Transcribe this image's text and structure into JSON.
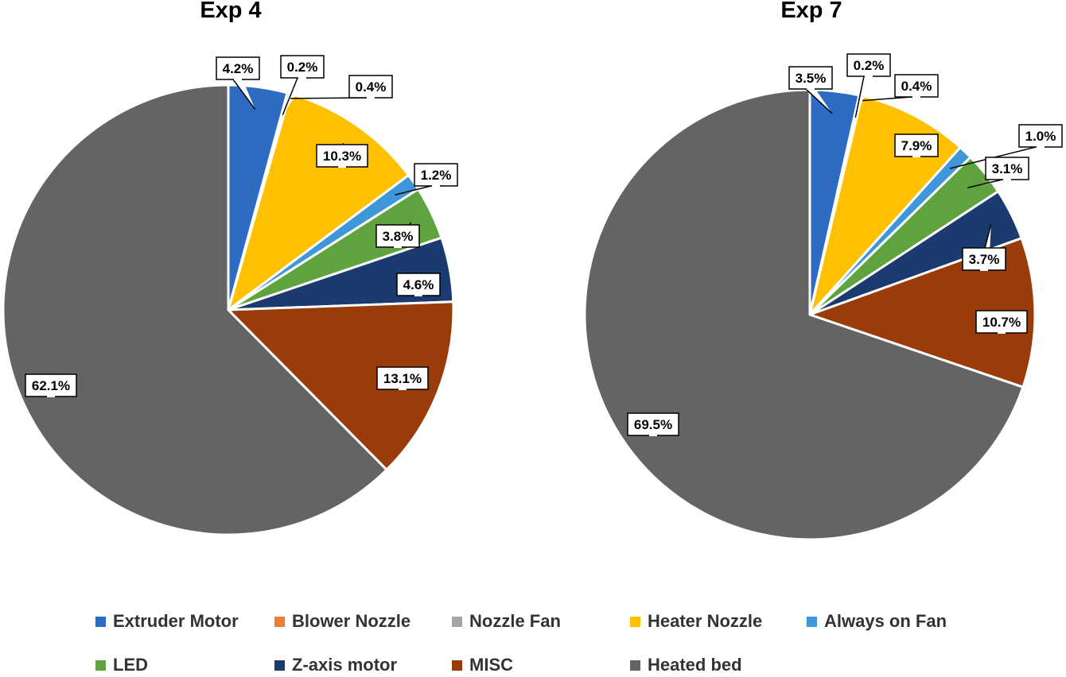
{
  "chart_data": [
    {
      "type": "pie",
      "title": "Exp 4",
      "categories": [
        "Extruder Motor",
        "Blower Nozzle",
        "Nozzle Fan",
        "Heater Nozzle",
        "Always on Fan",
        "LED",
        "Z-axis motor",
        "MISC",
        "Heated bed"
      ],
      "values": [
        4.2,
        0.0,
        0.2,
        10.3,
        1.2,
        3.8,
        4.6,
        13.1,
        62.1
      ],
      "value_labels": [
        "4.2%",
        "",
        "0.2%",
        "10.3%",
        "1.2%",
        "3.8%",
        "4.6%",
        "13.1%",
        "62.1%"
      ],
      "extra_labels": [
        {
          "text": "0.4%"
        }
      ],
      "start_angle_deg": 0,
      "direction": "clockwise"
    },
    {
      "type": "pie",
      "title": "Exp 7",
      "categories": [
        "Extruder Motor",
        "Blower Nozzle",
        "Nozzle Fan",
        "Heater Nozzle",
        "Always on Fan",
        "LED",
        "Z-axis motor",
        "MISC",
        "Heated bed"
      ],
      "values": [
        3.5,
        0.0,
        0.2,
        7.9,
        1.0,
        3.1,
        3.7,
        10.7,
        69.5
      ],
      "value_labels": [
        "3.5%",
        "",
        "0.2%",
        "7.9%",
        "1.0%",
        "3.1%",
        "3.7%",
        "10.7%",
        "69.5%"
      ],
      "extra_labels": [
        {
          "text": "0.4%"
        }
      ],
      "start_angle_deg": 0,
      "direction": "clockwise"
    }
  ],
  "legend": {
    "placement": "bottom",
    "items": [
      {
        "label": "Extruder Motor",
        "color": "#2E6CC4"
      },
      {
        "label": "Blower Nozzle",
        "color": "#ED7D31"
      },
      {
        "label": "Nozzle Fan",
        "color": "#A5A5A5"
      },
      {
        "label": "Heater Nozzle",
        "color": "#FFC000"
      },
      {
        "label": "Always on Fan",
        "color": "#3F96D8"
      },
      {
        "label": "LED",
        "color": "#5FA33F"
      },
      {
        "label": "Z-axis motor",
        "color": "#1A3A70"
      },
      {
        "label": "MISC",
        "color": "#9A3B0A"
      },
      {
        "label": "Heated bed",
        "color": "#646464"
      }
    ]
  }
}
